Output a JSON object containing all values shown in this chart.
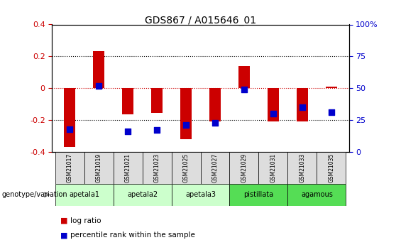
{
  "title": "GDS867 / A015646_01",
  "samples": [
    "GSM21017",
    "GSM21019",
    "GSM21021",
    "GSM21023",
    "GSM21025",
    "GSM21027",
    "GSM21029",
    "GSM21031",
    "GSM21033",
    "GSM21035"
  ],
  "log_ratios": [
    -0.37,
    0.235,
    -0.165,
    -0.155,
    -0.32,
    -0.21,
    0.14,
    -0.21,
    -0.21,
    0.01
  ],
  "percentile_ranks": [
    18,
    52,
    16,
    17,
    21,
    23,
    49,
    30,
    35,
    31
  ],
  "ylim": [
    -0.4,
    0.4
  ],
  "right_ylim": [
    0,
    100
  ],
  "yticks": [
    -0.4,
    -0.2,
    0.0,
    0.2,
    0.4
  ],
  "right_yticks": [
    0,
    25,
    50,
    75,
    100
  ],
  "bar_color": "#cc0000",
  "dot_color": "#0000cc",
  "genotype_groups": [
    {
      "label": "apetala1",
      "start": 0,
      "end": 2,
      "color": "#ccffcc"
    },
    {
      "label": "apetala2",
      "start": 2,
      "end": 4,
      "color": "#ccffcc"
    },
    {
      "label": "apetala3",
      "start": 4,
      "end": 6,
      "color": "#ccffcc"
    },
    {
      "label": "pistillata",
      "start": 6,
      "end": 8,
      "color": "#55dd55"
    },
    {
      "label": "agamous",
      "start": 8,
      "end": 10,
      "color": "#55dd55"
    }
  ],
  "bar_width": 0.4,
  "dot_size": 28
}
